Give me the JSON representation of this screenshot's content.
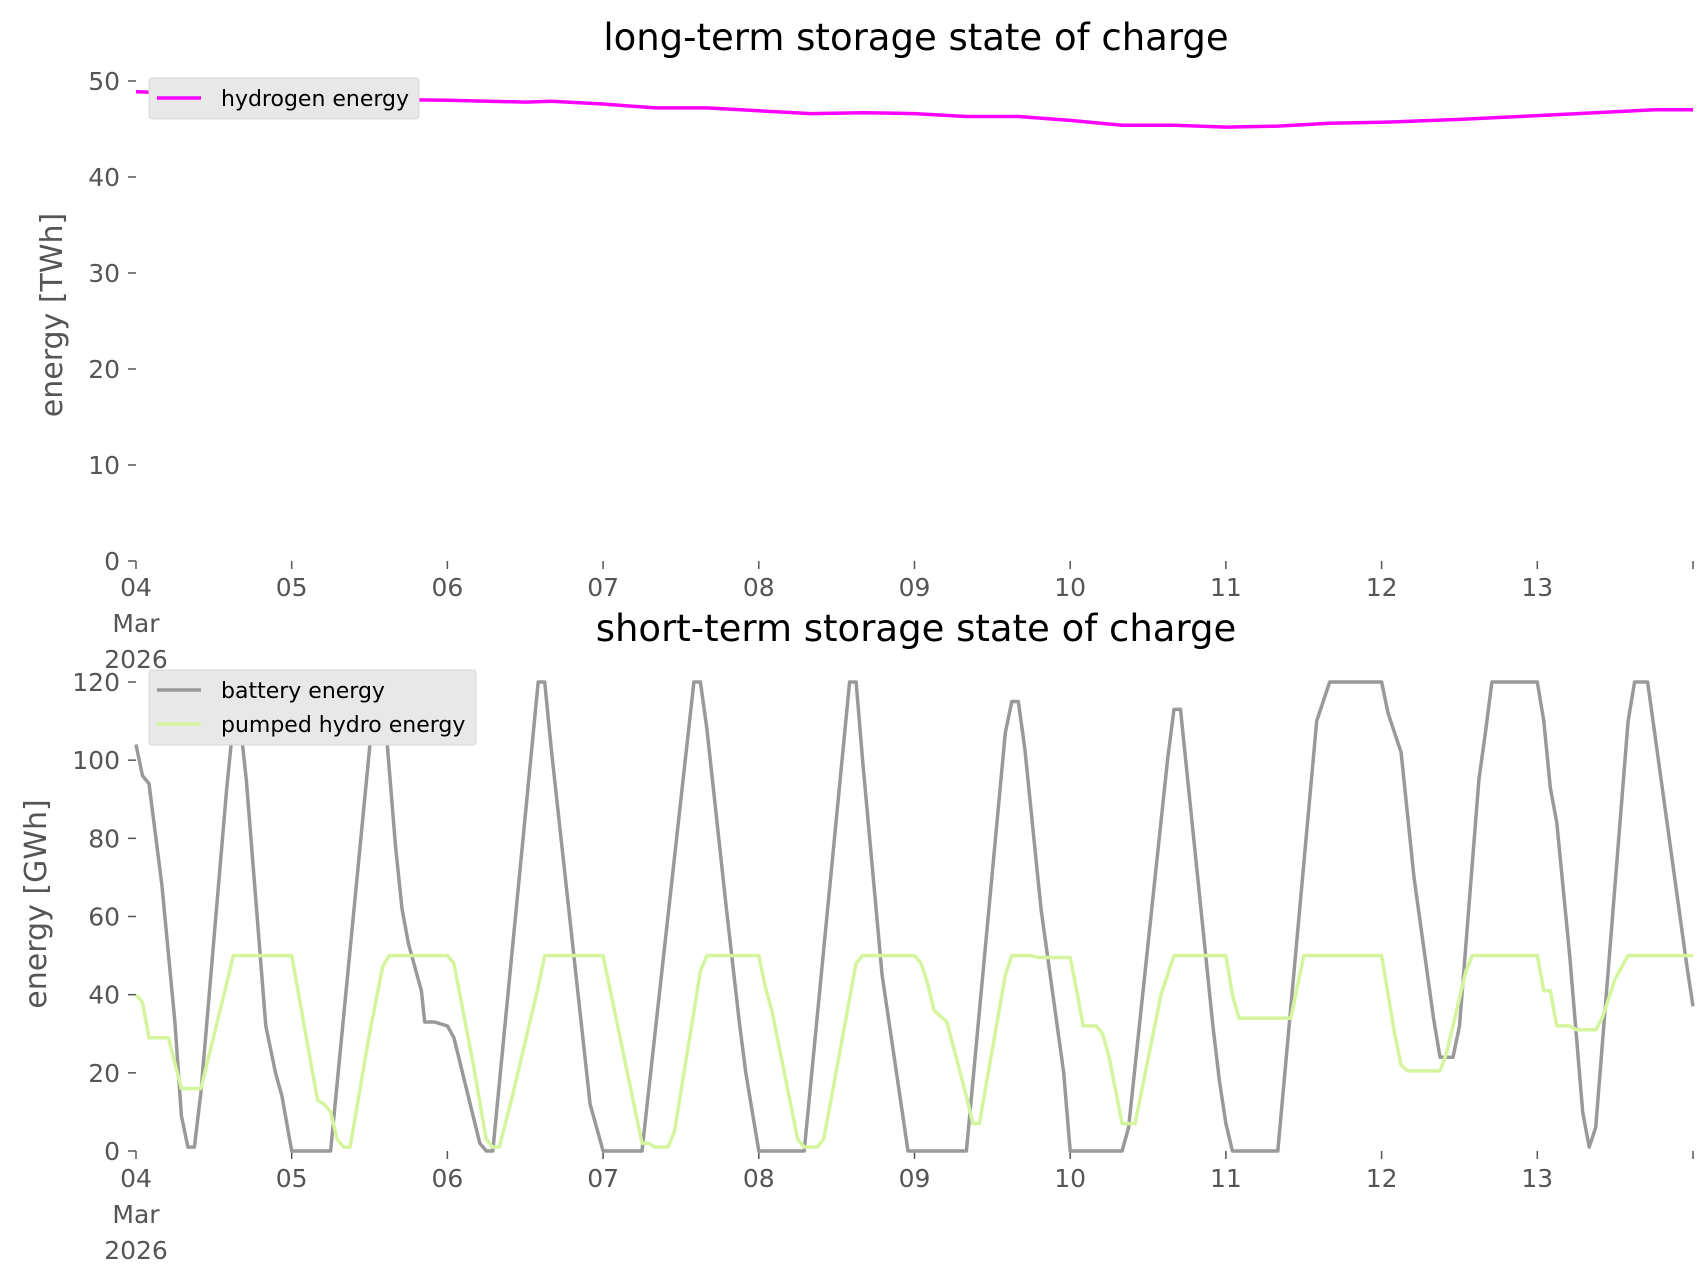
{
  "chart_data": [
    {
      "type": "line",
      "title": "long-term storage state of charge",
      "ylabel": "energy [TWh]",
      "xlabel": "",
      "xlim": [
        "2026-03-04",
        "2026-03-14"
      ],
      "ylim": [
        0,
        50
      ],
      "yticks": [
        "0",
        "10",
        "20",
        "30",
        "40",
        "50"
      ],
      "xticks": [
        [
          "04",
          "Mar",
          "2026"
        ],
        [
          "05"
        ],
        [
          "06"
        ],
        [
          "07"
        ],
        [
          "08"
        ],
        [
          "09"
        ],
        [
          "10"
        ],
        [
          "11"
        ],
        [
          "12"
        ],
        [
          "13"
        ],
        [
          ""
        ]
      ],
      "grid": false,
      "legend_position": "top-left",
      "series": [
        {
          "name": "hydrogen energy",
          "color": "#ff00ff",
          "points": [
            [
              "2026-03-04T00:00",
              48.9
            ],
            [
              "2026-03-04T12:00",
              48.5
            ],
            [
              "2026-03-05T00:00",
              48.3
            ],
            [
              "2026-03-05T12:00",
              48.1
            ],
            [
              "2026-03-06T00:00",
              48.0
            ],
            [
              "2026-03-06T12:00",
              47.8
            ],
            [
              "2026-03-06T16:00",
              47.9
            ],
            [
              "2026-03-07T00:00",
              47.6
            ],
            [
              "2026-03-07T08:00",
              47.2
            ],
            [
              "2026-03-07T16:00",
              47.2
            ],
            [
              "2026-03-08T00:00",
              46.9
            ],
            [
              "2026-03-08T08:00",
              46.6
            ],
            [
              "2026-03-08T16:00",
              46.7
            ],
            [
              "2026-03-09T00:00",
              46.6
            ],
            [
              "2026-03-09T08:00",
              46.3
            ],
            [
              "2026-03-09T16:00",
              46.3
            ],
            [
              "2026-03-10T00:00",
              45.9
            ],
            [
              "2026-03-10T08:00",
              45.4
            ],
            [
              "2026-03-10T16:00",
              45.4
            ],
            [
              "2026-03-11T00:00",
              45.2
            ],
            [
              "2026-03-11T08:00",
              45.3
            ],
            [
              "2026-03-11T16:00",
              45.6
            ],
            [
              "2026-03-12T00:00",
              45.7
            ],
            [
              "2026-03-12T12:00",
              46.0
            ],
            [
              "2026-03-13T00:00",
              46.4
            ],
            [
              "2026-03-13T12:00",
              46.8
            ],
            [
              "2026-03-13T18:00",
              47.0
            ],
            [
              "2026-03-14T00:00",
              47.0
            ]
          ]
        }
      ]
    },
    {
      "type": "line",
      "title": "short-term storage state of charge",
      "ylabel": "energy [GWh]",
      "xlabel": "",
      "xlim": [
        "2026-03-04",
        "2026-03-14"
      ],
      "ylim": [
        0,
        120
      ],
      "yticks": [
        "0",
        "20",
        "40",
        "60",
        "80",
        "100",
        "120"
      ],
      "xticks": [
        [
          "04",
          "Mar",
          "2026"
        ],
        [
          "05"
        ],
        [
          "06"
        ],
        [
          "07"
        ],
        [
          "08"
        ],
        [
          "09"
        ],
        [
          "10"
        ],
        [
          "11"
        ],
        [
          "12"
        ],
        [
          "13"
        ],
        [
          ""
        ]
      ],
      "grid": false,
      "legend_position": "top-left",
      "series": [
        {
          "name": "battery energy",
          "color": "#999999",
          "points": [
            [
              "2026-03-04T00:00",
              104
            ],
            [
              "2026-03-04T01:00",
              96
            ],
            [
              "2026-03-04T02:00",
              94
            ],
            [
              "2026-03-04T04:00",
              68
            ],
            [
              "2026-03-04T06:00",
              33
            ],
            [
              "2026-03-04T07:00",
              9
            ],
            [
              "2026-03-04T08:00",
              1
            ],
            [
              "2026-03-04T09:00",
              1
            ],
            [
              "2026-03-04T10:00",
              15
            ],
            [
              "2026-03-04T14:00",
              93
            ],
            [
              "2026-03-04T15:30",
              118
            ],
            [
              "2026-03-04T17:00",
              95
            ],
            [
              "2026-03-04T20:00",
              32
            ],
            [
              "2026-03-04T21:30",
              20
            ],
            [
              "2026-03-04T22:30",
              14
            ],
            [
              "2026-03-05T00:00",
              0
            ],
            [
              "2026-03-05T06:00",
              0
            ],
            [
              "2026-03-05T13:00",
              120
            ],
            [
              "2026-03-05T14:00",
              119
            ],
            [
              "2026-03-05T16:00",
              78
            ],
            [
              "2026-03-05T17:00",
              62
            ],
            [
              "2026-03-05T18:00",
              53
            ],
            [
              "2026-03-05T20:00",
              41
            ],
            [
              "2026-03-05T20:30",
              33
            ],
            [
              "2026-03-05T22:00",
              33
            ],
            [
              "2026-03-06T00:00",
              32
            ],
            [
              "2026-03-06T01:00",
              29
            ],
            [
              "2026-03-06T05:00",
              2
            ],
            [
              "2026-03-06T06:00",
              0
            ],
            [
              "2026-03-06T07:00",
              0
            ],
            [
              "2026-03-06T14:00",
              120
            ],
            [
              "2026-03-06T15:00",
              120
            ],
            [
              "2026-03-06T16:00",
              103
            ],
            [
              "2026-03-06T22:00",
              12
            ],
            [
              "2026-03-07T00:00",
              0
            ],
            [
              "2026-03-07T06:00",
              0
            ],
            [
              "2026-03-07T14:00",
              120
            ],
            [
              "2026-03-07T15:00",
              120
            ],
            [
              "2026-03-07T16:00",
              108
            ],
            [
              "2026-03-07T19:00",
              62
            ],
            [
              "2026-03-07T21:00",
              33
            ],
            [
              "2026-03-07T22:00",
              20
            ],
            [
              "2026-03-08T00:00",
              0
            ],
            [
              "2026-03-08T07:00",
              0
            ],
            [
              "2026-03-08T14:00",
              120
            ],
            [
              "2026-03-08T15:00",
              120
            ],
            [
              "2026-03-08T16:00",
              100
            ],
            [
              "2026-03-08T19:00",
              45
            ],
            [
              "2026-03-08T23:00",
              0
            ],
            [
              "2026-03-09T08:00",
              0
            ],
            [
              "2026-03-09T14:00",
              107
            ],
            [
              "2026-03-09T15:00",
              115
            ],
            [
              "2026-03-09T16:00",
              115
            ],
            [
              "2026-03-09T17:00",
              103
            ],
            [
              "2026-03-09T19:30",
              62
            ],
            [
              "2026-03-09T23:00",
              20
            ],
            [
              "2026-03-10T00:00",
              0
            ],
            [
              "2026-03-10T08:00",
              0
            ],
            [
              "2026-03-10T09:00",
              6
            ],
            [
              "2026-03-10T15:00",
              100
            ],
            [
              "2026-03-10T16:00",
              113
            ],
            [
              "2026-03-10T17:00",
              113
            ],
            [
              "2026-03-10T22:00",
              32
            ],
            [
              "2026-03-10T23:00",
              18
            ],
            [
              "2026-03-11T00:00",
              7
            ],
            [
              "2026-03-11T01:00",
              0
            ],
            [
              "2026-03-11T08:00",
              0
            ],
            [
              "2026-03-11T14:00",
              110
            ],
            [
              "2026-03-11T16:00",
              120
            ],
            [
              "2026-03-12T00:00",
              120
            ],
            [
              "2026-03-12T01:00",
              112
            ],
            [
              "2026-03-12T03:00",
              102
            ],
            [
              "2026-03-12T05:00",
              70
            ],
            [
              "2026-03-12T08:00",
              34
            ],
            [
              "2026-03-12T09:00",
              24
            ],
            [
              "2026-03-12T11:00",
              24
            ],
            [
              "2026-03-12T12:00",
              32
            ],
            [
              "2026-03-12T15:00",
              95
            ],
            [
              "2026-03-12T16:00",
              107
            ],
            [
              "2026-03-12T17:00",
              120
            ],
            [
              "2026-03-13T00:00",
              120
            ],
            [
              "2026-03-13T01:00",
              110
            ],
            [
              "2026-03-13T02:00",
              93
            ],
            [
              "2026-03-13T03:00",
              84
            ],
            [
              "2026-03-13T05:00",
              50
            ],
            [
              "2026-03-13T07:00",
              10
            ],
            [
              "2026-03-13T08:00",
              1
            ],
            [
              "2026-03-13T09:00",
              6
            ],
            [
              "2026-03-13T14:00",
              110
            ],
            [
              "2026-03-13T15:00",
              120
            ],
            [
              "2026-03-13T17:00",
              120
            ],
            [
              "2026-03-13T18:00",
              108
            ],
            [
              "2026-03-13T23:00",
              48
            ],
            [
              "2026-03-14T00:00",
              37
            ]
          ]
        },
        {
          "name": "pumped hydro energy",
          "color": "#d4f59e",
          "points": [
            [
              "2026-03-04T00:00",
              40
            ],
            [
              "2026-03-04T01:00",
              38
            ],
            [
              "2026-03-04T02:00",
              29
            ],
            [
              "2026-03-04T05:00",
              29
            ],
            [
              "2026-03-04T07:00",
              16
            ],
            [
              "2026-03-04T10:00",
              16
            ],
            [
              "2026-03-04T14:00",
              43
            ],
            [
              "2026-03-04T15:00",
              50
            ],
            [
              "2026-03-05T00:00",
              50
            ],
            [
              "2026-03-05T03:00",
              22
            ],
            [
              "2026-03-05T04:00",
              13
            ],
            [
              "2026-03-05T05:00",
              12
            ],
            [
              "2026-03-05T06:00",
              10
            ],
            [
              "2026-03-05T07:00",
              3
            ],
            [
              "2026-03-05T08:00",
              1
            ],
            [
              "2026-03-05T09:00",
              1
            ],
            [
              "2026-03-05T12:00",
              30
            ],
            [
              "2026-03-05T14:00",
              47
            ],
            [
              "2026-03-05T15:00",
              50
            ],
            [
              "2026-03-06T00:00",
              50
            ],
            [
              "2026-03-06T01:00",
              48
            ],
            [
              "2026-03-06T04:00",
              22
            ],
            [
              "2026-03-06T06:00",
              3
            ],
            [
              "2026-03-06T07:00",
              1
            ],
            [
              "2026-03-06T08:00",
              1
            ],
            [
              "2026-03-06T10:00",
              14
            ],
            [
              "2026-03-06T14:00",
              42
            ],
            [
              "2026-03-06T15:00",
              50
            ],
            [
              "2026-03-07T00:00",
              50
            ],
            [
              "2026-03-07T05:00",
              10
            ],
            [
              "2026-03-07T06:00",
              2
            ],
            [
              "2026-03-07T07:00",
              2
            ],
            [
              "2026-03-07T08:00",
              1
            ],
            [
              "2026-03-07T10:00",
              1
            ],
            [
              "2026-03-07T11:00",
              5
            ],
            [
              "2026-03-07T15:00",
              46
            ],
            [
              "2026-03-07T16:00",
              50
            ],
            [
              "2026-03-08T00:00",
              50
            ],
            [
              "2026-03-08T01:00",
              42
            ],
            [
              "2026-03-08T02:00",
              36
            ],
            [
              "2026-03-08T06:00",
              3
            ],
            [
              "2026-03-08T07:00",
              1
            ],
            [
              "2026-03-08T09:00",
              1
            ],
            [
              "2026-03-08T10:00",
              3
            ],
            [
              "2026-03-08T15:00",
              48
            ],
            [
              "2026-03-08T16:00",
              50
            ],
            [
              "2026-03-09T00:00",
              50
            ],
            [
              "2026-03-09T01:00",
              48
            ],
            [
              "2026-03-09T02:00",
              43
            ],
            [
              "2026-03-09T03:00",
              36
            ],
            [
              "2026-03-09T05:00",
              33
            ],
            [
              "2026-03-09T08:00",
              14
            ],
            [
              "2026-03-09T09:00",
              7
            ],
            [
              "2026-03-09T10:00",
              7
            ],
            [
              "2026-03-09T14:00",
              45
            ],
            [
              "2026-03-09T15:00",
              50
            ],
            [
              "2026-03-09T18:00",
              50
            ],
            [
              "2026-03-09T19:00",
              49.5
            ],
            [
              "2026-03-10T00:00",
              49.5
            ],
            [
              "2026-03-10T01:00",
              41
            ],
            [
              "2026-03-10T02:00",
              32
            ],
            [
              "2026-03-10T04:00",
              32
            ],
            [
              "2026-03-10T05:00",
              30
            ],
            [
              "2026-03-10T06:00",
              24
            ],
            [
              "2026-03-10T08:00",
              7
            ],
            [
              "2026-03-10T10:00",
              7
            ],
            [
              "2026-03-10T14:00",
              40
            ],
            [
              "2026-03-10T16:00",
              50
            ],
            [
              "2026-03-11T00:00",
              50
            ],
            [
              "2026-03-11T01:00",
              40
            ],
            [
              "2026-03-11T02:00",
              34
            ],
            [
              "2026-03-11T10:00",
              34
            ],
            [
              "2026-03-11T12:00",
              50
            ],
            [
              "2026-03-12T00:00",
              50
            ],
            [
              "2026-03-12T02:00",
              30
            ],
            [
              "2026-03-12T03:00",
              22
            ],
            [
              "2026-03-12T04:00",
              20.5
            ],
            [
              "2026-03-12T09:00",
              20.5
            ],
            [
              "2026-03-12T10:00",
              25
            ],
            [
              "2026-03-12T13:00",
              46
            ],
            [
              "2026-03-12T14:00",
              50
            ],
            [
              "2026-03-13T00:00",
              50
            ],
            [
              "2026-03-13T01:00",
              41
            ],
            [
              "2026-03-13T02:00",
              41
            ],
            [
              "2026-03-13T03:00",
              32
            ],
            [
              "2026-03-13T05:00",
              32
            ],
            [
              "2026-03-13T06:00",
              31
            ],
            [
              "2026-03-13T09:00",
              31
            ],
            [
              "2026-03-13T10:00",
              34
            ],
            [
              "2026-03-13T12:00",
              44
            ],
            [
              "2026-03-13T14:00",
              50
            ],
            [
              "2026-03-14T00:00",
              50
            ]
          ]
        }
      ]
    }
  ]
}
